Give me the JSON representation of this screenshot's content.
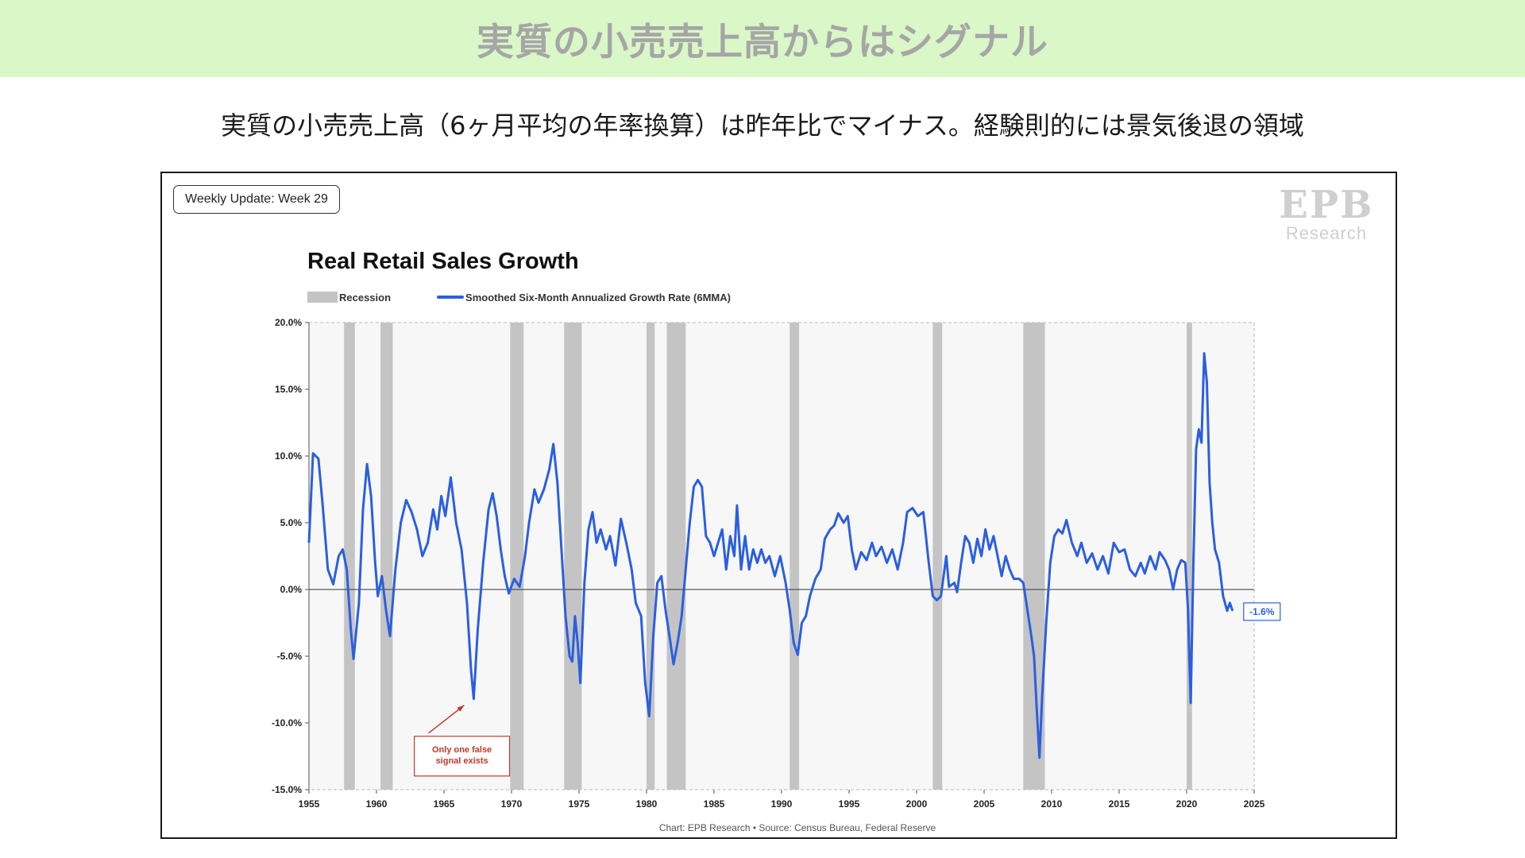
{
  "banner": {
    "title": "実質の小売売上高からはシグナル"
  },
  "subtitle": "実質の小売売上高（6ヶ月平均の年率換算）は昨年比でマイナス。経験則的には景気後退の領域",
  "badge": "Weekly Update: Week 29",
  "logo": {
    "mark": "EPB",
    "text": "Research"
  },
  "colors": {
    "banner_bg": "#d9f7c7",
    "series": "#2b5fe0",
    "recession": "#c4c4c4",
    "annotation": "#c0392b",
    "plot_bg": "#f7f7f7"
  },
  "chart_data": {
    "type": "line",
    "title": "Real Retail Sales Growth",
    "source": "Chart: EPB Research  •  Source: Census Bureau, Federal Reserve",
    "legend": [
      {
        "name": "Recession",
        "kind": "band"
      },
      {
        "name": "Smoothed Six-Month Annualized Growth Rate (6MMA)",
        "kind": "line"
      }
    ],
    "xlim": [
      1955,
      2025
    ],
    "ylim": [
      -15,
      20
    ],
    "x_ticks": [
      1955,
      1960,
      1965,
      1970,
      1975,
      1980,
      1985,
      1990,
      1995,
      2000,
      2005,
      2010,
      2015,
      2020,
      2025
    ],
    "y_ticks": [
      {
        "value": 20,
        "label": "20.0%"
      },
      {
        "value": 15,
        "label": "15.0%"
      },
      {
        "value": 10,
        "label": "10.0%"
      },
      {
        "value": 5,
        "label": "5.0%"
      },
      {
        "value": 0,
        "label": "0.0%"
      },
      {
        "value": -5,
        "label": "-5.0%"
      },
      {
        "value": -10,
        "label": "-10.0%"
      },
      {
        "value": -15,
        "label": "-15.0%"
      }
    ],
    "recessions": [
      [
        1957.6,
        1958.4
      ],
      [
        1960.3,
        1961.2
      ],
      [
        1969.9,
        1970.9
      ],
      [
        1973.9,
        1975.2
      ],
      [
        1980.0,
        1980.6
      ],
      [
        1981.5,
        1982.9
      ],
      [
        1990.6,
        1991.3
      ],
      [
        2001.2,
        2001.9
      ],
      [
        2007.9,
        2009.5
      ],
      [
        2020.0,
        2020.4
      ]
    ],
    "series": [
      {
        "name": "Smoothed Six-Month Annualized Growth Rate (6MMA)",
        "points": [
          [
            1955.0,
            3.5
          ],
          [
            1955.3,
            10.2
          ],
          [
            1955.7,
            9.8
          ],
          [
            1956.0,
            6.5
          ],
          [
            1956.4,
            1.5
          ],
          [
            1956.8,
            0.4
          ],
          [
            1957.2,
            2.5
          ],
          [
            1957.5,
            3.0
          ],
          [
            1957.8,
            1.5
          ],
          [
            1958.1,
            -3.0
          ],
          [
            1958.3,
            -5.2
          ],
          [
            1958.7,
            -1.0
          ],
          [
            1959.0,
            6.0
          ],
          [
            1959.3,
            9.4
          ],
          [
            1959.6,
            7.0
          ],
          [
            1959.9,
            2.0
          ],
          [
            1960.1,
            -0.5
          ],
          [
            1960.4,
            1.0
          ],
          [
            1960.7,
            -1.5
          ],
          [
            1961.0,
            -3.5
          ],
          [
            1961.4,
            1.5
          ],
          [
            1961.8,
            5.0
          ],
          [
            1962.2,
            6.7
          ],
          [
            1962.6,
            5.8
          ],
          [
            1963.0,
            4.5
          ],
          [
            1963.4,
            2.5
          ],
          [
            1963.8,
            3.5
          ],
          [
            1964.2,
            6.0
          ],
          [
            1964.5,
            4.5
          ],
          [
            1964.8,
            7.0
          ],
          [
            1965.1,
            5.5
          ],
          [
            1965.5,
            8.4
          ],
          [
            1965.9,
            5.0
          ],
          [
            1966.3,
            3.0
          ],
          [
            1966.7,
            -1.0
          ],
          [
            1967.0,
            -6.0
          ],
          [
            1967.2,
            -8.2
          ],
          [
            1967.5,
            -3.0
          ],
          [
            1967.9,
            2.0
          ],
          [
            1968.3,
            6.0
          ],
          [
            1968.6,
            7.2
          ],
          [
            1968.9,
            5.5
          ],
          [
            1969.2,
            3.0
          ],
          [
            1969.5,
            1.0
          ],
          [
            1969.8,
            -0.3
          ],
          [
            1970.2,
            0.8
          ],
          [
            1970.6,
            0.2
          ],
          [
            1971.0,
            2.5
          ],
          [
            1971.3,
            5.0
          ],
          [
            1971.7,
            7.5
          ],
          [
            1972.0,
            6.5
          ],
          [
            1972.4,
            7.5
          ],
          [
            1972.8,
            9.0
          ],
          [
            1973.1,
            10.9
          ],
          [
            1973.4,
            8.0
          ],
          [
            1973.7,
            3.0
          ],
          [
            1974.0,
            -2.0
          ],
          [
            1974.3,
            -5.0
          ],
          [
            1974.5,
            -5.4
          ],
          [
            1974.7,
            -2.0
          ],
          [
            1974.9,
            -4.0
          ],
          [
            1975.1,
            -7.0
          ],
          [
            1975.4,
            0.5
          ],
          [
            1975.7,
            4.5
          ],
          [
            1976.0,
            5.8
          ],
          [
            1976.3,
            3.5
          ],
          [
            1976.6,
            4.5
          ],
          [
            1977.0,
            3.0
          ],
          [
            1977.3,
            4.0
          ],
          [
            1977.7,
            1.8
          ],
          [
            1978.1,
            5.3
          ],
          [
            1978.5,
            3.5
          ],
          [
            1978.9,
            1.5
          ],
          [
            1979.2,
            -1.0
          ],
          [
            1979.6,
            -2.0
          ],
          [
            1979.9,
            -7.0
          ],
          [
            1980.2,
            -9.5
          ],
          [
            1980.5,
            -3.5
          ],
          [
            1980.8,
            0.5
          ],
          [
            1981.1,
            1.0
          ],
          [
            1981.4,
            -1.5
          ],
          [
            1981.7,
            -3.5
          ],
          [
            1982.0,
            -5.6
          ],
          [
            1982.3,
            -4.0
          ],
          [
            1982.6,
            -2.0
          ],
          [
            1982.9,
            1.5
          ],
          [
            1983.2,
            5.0
          ],
          [
            1983.5,
            7.7
          ],
          [
            1983.8,
            8.2
          ],
          [
            1984.1,
            7.7
          ],
          [
            1984.4,
            4.0
          ],
          [
            1984.7,
            3.5
          ],
          [
            1985.0,
            2.5
          ],
          [
            1985.3,
            3.5
          ],
          [
            1985.6,
            4.5
          ],
          [
            1985.9,
            1.5
          ],
          [
            1986.2,
            4.0
          ],
          [
            1986.5,
            2.5
          ],
          [
            1986.7,
            6.3
          ],
          [
            1987.0,
            1.5
          ],
          [
            1987.3,
            4.0
          ],
          [
            1987.6,
            1.5
          ],
          [
            1987.9,
            3.0
          ],
          [
            1988.2,
            2.0
          ],
          [
            1988.5,
            3.0
          ],
          [
            1988.8,
            2.0
          ],
          [
            1989.1,
            2.5
          ],
          [
            1989.5,
            1.0
          ],
          [
            1989.9,
            2.5
          ],
          [
            1990.3,
            0.5
          ],
          [
            1990.6,
            -1.5
          ],
          [
            1990.9,
            -4.0
          ],
          [
            1991.2,
            -4.9
          ],
          [
            1991.5,
            -2.5
          ],
          [
            1991.8,
            -2.0
          ],
          [
            1992.1,
            -0.5
          ],
          [
            1992.5,
            0.8
          ],
          [
            1992.9,
            1.5
          ],
          [
            1993.2,
            3.8
          ],
          [
            1993.6,
            4.5
          ],
          [
            1993.9,
            4.8
          ],
          [
            1994.2,
            5.7
          ],
          [
            1994.6,
            5.0
          ],
          [
            1994.9,
            5.5
          ],
          [
            1995.2,
            3.0
          ],
          [
            1995.5,
            1.5
          ],
          [
            1995.9,
            2.8
          ],
          [
            1996.3,
            2.2
          ],
          [
            1996.7,
            3.5
          ],
          [
            1997.0,
            2.5
          ],
          [
            1997.4,
            3.2
          ],
          [
            1997.8,
            2.0
          ],
          [
            1998.2,
            3.0
          ],
          [
            1998.6,
            1.5
          ],
          [
            1999.0,
            3.5
          ],
          [
            1999.3,
            5.8
          ],
          [
            1999.7,
            6.1
          ],
          [
            2000.1,
            5.5
          ],
          [
            2000.5,
            5.8
          ],
          [
            2000.9,
            2.0
          ],
          [
            2001.2,
            -0.5
          ],
          [
            2001.5,
            -0.8
          ],
          [
            2001.8,
            -0.5
          ],
          [
            2002.0,
            1.0
          ],
          [
            2002.2,
            2.5
          ],
          [
            2002.4,
            0.2
          ],
          [
            2002.8,
            0.5
          ],
          [
            2003.0,
            -0.2
          ],
          [
            2003.3,
            2.0
          ],
          [
            2003.6,
            4.0
          ],
          [
            2003.9,
            3.5
          ],
          [
            2004.2,
            2.0
          ],
          [
            2004.5,
            3.8
          ],
          [
            2004.8,
            2.5
          ],
          [
            2005.1,
            4.5
          ],
          [
            2005.4,
            3.0
          ],
          [
            2005.7,
            4.0
          ],
          [
            2006.0,
            2.5
          ],
          [
            2006.3,
            1.0
          ],
          [
            2006.6,
            2.5
          ],
          [
            2006.9,
            1.5
          ],
          [
            2007.2,
            0.8
          ],
          [
            2007.6,
            0.8
          ],
          [
            2007.9,
            0.5
          ],
          [
            2008.2,
            -1.5
          ],
          [
            2008.5,
            -3.5
          ],
          [
            2008.7,
            -5.0
          ],
          [
            2008.9,
            -9.0
          ],
          [
            2009.1,
            -12.6
          ],
          [
            2009.3,
            -8.0
          ],
          [
            2009.6,
            -2.5
          ],
          [
            2009.9,
            2.0
          ],
          [
            2010.2,
            4.0
          ],
          [
            2010.5,
            4.5
          ],
          [
            2010.8,
            4.2
          ],
          [
            2011.1,
            5.2
          ],
          [
            2011.5,
            3.5
          ],
          [
            2011.9,
            2.5
          ],
          [
            2012.2,
            3.5
          ],
          [
            2012.6,
            2.0
          ],
          [
            2013.0,
            2.7
          ],
          [
            2013.4,
            1.5
          ],
          [
            2013.8,
            2.5
          ],
          [
            2014.2,
            1.2
          ],
          [
            2014.6,
            3.5
          ],
          [
            2015.0,
            2.8
          ],
          [
            2015.4,
            3.0
          ],
          [
            2015.8,
            1.5
          ],
          [
            2016.2,
            1.0
          ],
          [
            2016.6,
            2.0
          ],
          [
            2016.9,
            1.2
          ],
          [
            2017.3,
            2.5
          ],
          [
            2017.7,
            1.5
          ],
          [
            2018.0,
            2.8
          ],
          [
            2018.4,
            2.2
          ],
          [
            2018.7,
            1.5
          ],
          [
            2019.0,
            0.0
          ],
          [
            2019.3,
            1.5
          ],
          [
            2019.6,
            2.2
          ],
          [
            2019.9,
            2.0
          ],
          [
            2020.1,
            -1.5
          ],
          [
            2020.3,
            -8.5
          ],
          [
            2020.5,
            2.0
          ],
          [
            2020.7,
            10.5
          ],
          [
            2020.9,
            12.0
          ],
          [
            2021.1,
            11.0
          ],
          [
            2021.3,
            17.7
          ],
          [
            2021.5,
            15.5
          ],
          [
            2021.7,
            8.0
          ],
          [
            2021.9,
            5.0
          ],
          [
            2022.1,
            3.0
          ],
          [
            2022.4,
            2.0
          ],
          [
            2022.7,
            -0.5
          ],
          [
            2023.0,
            -1.6
          ],
          [
            2023.2,
            -1.0
          ],
          [
            2023.4,
            -1.6
          ]
        ]
      }
    ],
    "last_value_label": "-1.6%",
    "annotation": {
      "text_lines": [
        "Only one false",
        "signal exists"
      ],
      "points_to": [
        1967.2,
        -8.2
      ]
    }
  }
}
